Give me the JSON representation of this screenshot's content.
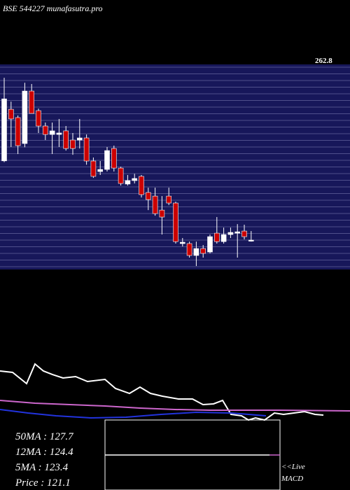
{
  "chart_data": [
    {
      "type": "candlestick",
      "title": "BSE 544227 munafasutra.pro",
      "ylim": [
        97.4,
        262.8
      ],
      "yticks": [
        262.8
      ],
      "up_color": "#ffffff",
      "down_color": "#cc0000",
      "background": "#17175a",
      "grid": true,
      "open": [
        185,
        226.6,
        219.9,
        199,
        241.3,
        225.5,
        213.1,
        206.3,
        206.3,
        209.2,
        201.8,
        201.8,
        203.5,
        184.9,
        176.4,
        178.1,
        195.0,
        179.2,
        166.3,
        169.1,
        172.5,
        159.5,
        156.6,
        145.3,
        156.6,
        151.0,
        118.3,
        118.3,
        108.7,
        114.3,
        111.5,
        126.7,
        119.9,
        125.6,
        126.7,
        128.4,
        120.5
      ],
      "high": [
        252,
        232.8,
        221.6,
        248,
        247,
        227.2,
        215.9,
        215.9,
        218.8,
        213.1,
        207.5,
        218.8,
        206.3,
        187.7,
        184.9,
        196.2,
        197.3,
        180.3,
        173.6,
        174.6,
        173.6,
        163.4,
        163.4,
        156.6,
        163.4,
        152.1,
        122.8,
        119.9,
        119.9,
        117.1,
        125.6,
        139.7,
        131.2,
        131.2,
        134.0,
        133.5,
        128.4
      ],
      "low": [
        184,
        196.2,
        190.5,
        196,
        223.3,
        207.5,
        201.8,
        190.5,
        196.2,
        193.3,
        189.9,
        195.0,
        181.9,
        171.3,
        173.6,
        176.4,
        176.4,
        165.1,
        165.1,
        166.8,
        155.5,
        145.3,
        140.8,
        125.6,
        149.3,
        118.3,
        116.0,
        107.0,
        100.2,
        107.0,
        110.4,
        118.3,
        118.3,
        122.8,
        107.0,
        121.7,
        119.9
      ],
      "close": [
        235,
        218.8,
        197.3,
        241.3,
        223.3,
        213.1,
        206.3,
        209.2,
        207.5,
        195.0,
        195.0,
        203.5,
        184.9,
        172.5,
        178.1,
        193.3,
        179.2,
        166.8,
        169.1,
        170.8,
        157.8,
        153.8,
        142.5,
        139.7,
        151.0,
        119.9,
        119.4,
        108.7,
        114.3,
        110.4,
        123.9,
        119.9,
        125.6,
        127.3,
        127.8,
        123.9,
        121.1
      ]
    },
    {
      "type": "line",
      "xlim": [
        0,
        100
      ],
      "ylim": [
        0,
        100
      ],
      "series": [
        {
          "color": "#ffffff",
          "x": [
            0,
            3.6,
            7.6,
            10,
            12.4,
            15,
            18,
            21.6,
            25,
            30,
            33,
            37,
            40,
            43,
            46.4,
            51,
            55,
            58,
            61,
            63.6,
            66,
            69,
            71,
            73,
            75.6,
            78.4,
            81,
            84,
            87,
            90,
            92.4
          ],
          "values": [
            77.8,
            75.6,
            57.8,
            88.9,
            77.8,
            72.2,
            66.7,
            68.9,
            61.1,
            64.4,
            50,
            42.2,
            52.2,
            42.2,
            37.8,
            33.3,
            33.3,
            24.4,
            25.6,
            31.1,
            8.9,
            6.7,
            0,
            3.3,
            0,
            11.1,
            8.9,
            11.1,
            13.3,
            8.9,
            7.8
          ]
        },
        {
          "color": "#cc66cc",
          "x": [
            0,
            10,
            20,
            30,
            40,
            50,
            60,
            80,
            100
          ],
          "values": [
            31.1,
            26.7,
            24.4,
            22.2,
            18.9,
            16.7,
            15.6,
            15.6,
            14.4
          ]
        },
        {
          "color": "#2233dd",
          "x": [
            0,
            8,
            16,
            26,
            36,
            46,
            56,
            66,
            76
          ],
          "values": [
            16.7,
            11.1,
            6.7,
            3.3,
            4.4,
            8.9,
            12.2,
            11.1,
            6.7
          ]
        }
      ]
    }
  ],
  "stats": [
    "50MA : 127.7",
    "12MA : 124.4",
    "5MA : 123.4",
    "Price  : 121.1"
  ],
  "macd": {
    "live": "<<Live",
    "label": "MACD"
  }
}
